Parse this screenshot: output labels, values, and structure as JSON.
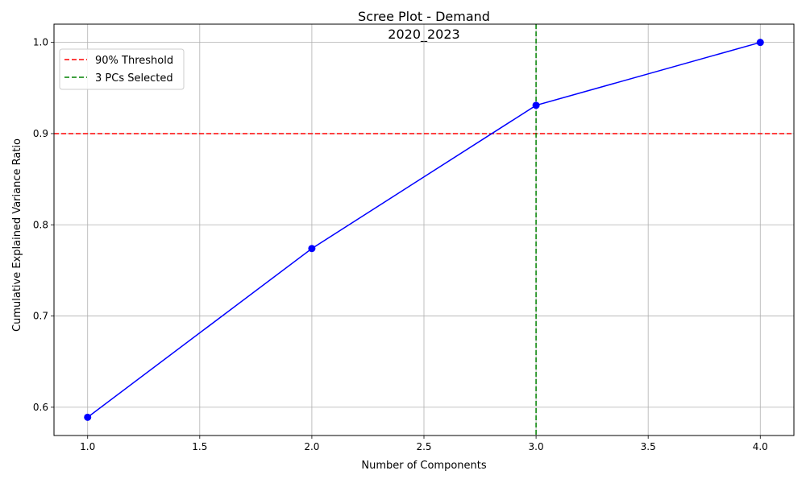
{
  "chart_data": {
    "type": "line",
    "title_line1": "Scree Plot - Demand",
    "title_line2": "2020_2023",
    "xlabel": "Number of Components",
    "ylabel": "Cumulative Explained Variance Ratio",
    "xlim": [
      0.85,
      4.15
    ],
    "ylim": [
      0.569,
      1.02
    ],
    "x_ticks": [
      1.0,
      1.5,
      2.0,
      2.5,
      3.0,
      3.5,
      4.0
    ],
    "x_tick_labels": [
      "1.0",
      "1.5",
      "2.0",
      "2.5",
      "3.0",
      "3.5",
      "4.0"
    ],
    "y_ticks": [
      0.6,
      0.7,
      0.8,
      0.9,
      1.0
    ],
    "y_tick_labels": [
      "0.6",
      "0.7",
      "0.8",
      "0.9",
      "1.0"
    ],
    "grid": true,
    "series": [
      {
        "x": [
          1,
          2,
          3,
          4
        ],
        "values": [
          0.589,
          0.774,
          0.931,
          1.0
        ],
        "color": "#0000ff",
        "marker": "circle"
      }
    ],
    "reference_lines": [
      {
        "orientation": "horizontal",
        "value": 0.9,
        "color": "#ff0000",
        "style": "dashed",
        "label": "90% Threshold"
      },
      {
        "orientation": "vertical",
        "value": 3,
        "color": "#008000",
        "style": "dashed",
        "label": "3 PCs Selected"
      }
    ],
    "legend_position": "top-left"
  }
}
